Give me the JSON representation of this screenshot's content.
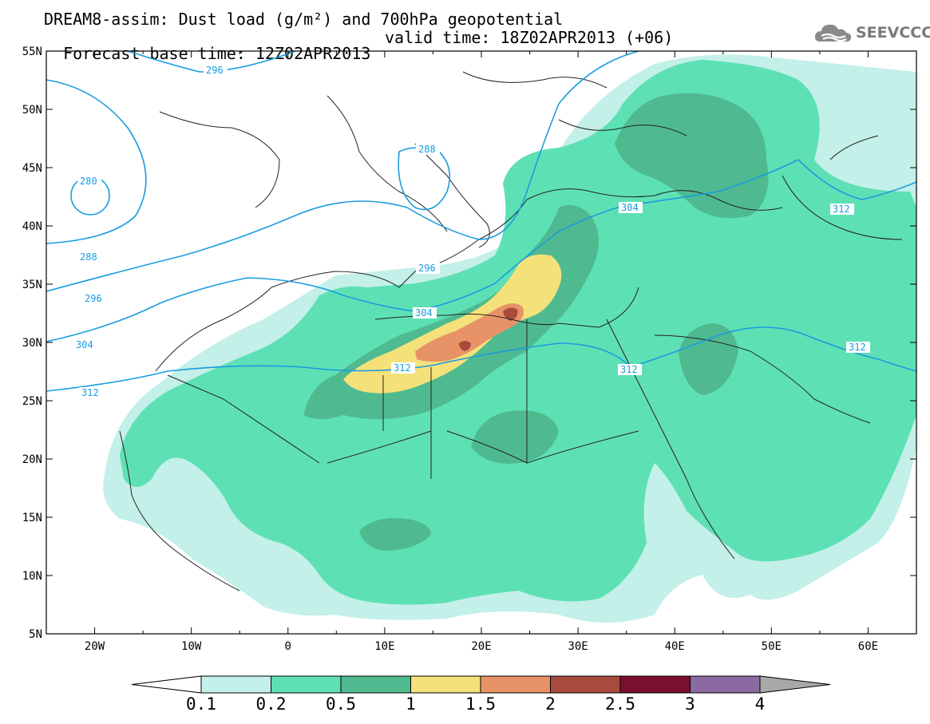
{
  "header": {
    "title_line1": "DREAM8-assim: Dust load (g/m²) and 700hPa geopotential",
    "base_time": "Forecast base time: 12Z02APR2013",
    "valid_time": "valid time: 18Z02APR2013 (+06)",
    "logo_text": "SEEVCCC"
  },
  "map": {
    "lat_labels": [
      "55N",
      "50N",
      "45N",
      "40N",
      "35N",
      "30N",
      "25N",
      "20N",
      "15N",
      "10N",
      "5N"
    ],
    "lon_labels": [
      "20W",
      "10W",
      "0",
      "10E",
      "20E",
      "30E",
      "40E",
      "50E",
      "60E"
    ],
    "lon_range": [
      -25,
      65
    ],
    "lat_range": [
      5,
      55
    ],
    "contour_labels": [
      {
        "text": "296"
      },
      {
        "text": "280"
      },
      {
        "text": "288"
      },
      {
        "text": "288"
      },
      {
        "text": "296"
      },
      {
        "text": "296"
      },
      {
        "text": "304"
      },
      {
        "text": "304"
      },
      {
        "text": "304"
      },
      {
        "text": "312"
      },
      {
        "text": "312"
      },
      {
        "text": "312"
      },
      {
        "text": "312"
      },
      {
        "text": "312"
      }
    ],
    "contour_color": "#1a9ce0"
  },
  "colorbar": {
    "labels": [
      "0.1",
      "0.2",
      "0.5",
      "1",
      "1.5",
      "2",
      "2.5",
      "3",
      "4"
    ],
    "colors": [
      "#c3f0e8",
      "#5ee0b5",
      "#4fba8f",
      "#f5e17a",
      "#e89268",
      "#a84a3c",
      "#7b0f2e",
      "#8b6aa1"
    ],
    "low_color": "#ffffff",
    "high_color": "#a8a8a8"
  }
}
